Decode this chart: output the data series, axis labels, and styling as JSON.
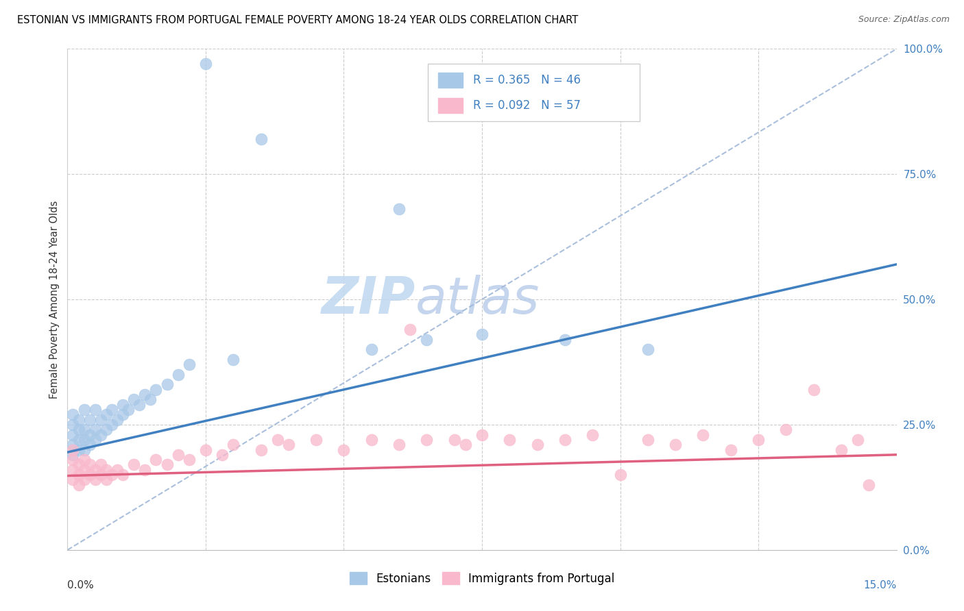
{
  "title": "ESTONIAN VS IMMIGRANTS FROM PORTUGAL FEMALE POVERTY AMONG 18-24 YEAR OLDS CORRELATION CHART",
  "source": "Source: ZipAtlas.com",
  "ylabel": "Female Poverty Among 18-24 Year Olds",
  "watermark_zip": "ZIP",
  "watermark_atlas": "atlas",
  "legend_blue_label": "Estonians",
  "legend_pink_label": "Immigrants from Portugal",
  "legend_blue_R": "R = 0.365",
  "legend_blue_N": "N = 46",
  "legend_pink_R": "R = 0.092",
  "legend_pink_N": "N = 57",
  "blue_fill_color": "#a8c8e8",
  "pink_fill_color": "#f9b8cc",
  "blue_line_color": "#4080c0",
  "pink_line_color": "#e06080",
  "diagonal_line_color": "#a0b8d8",
  "blue_regress_intercept": 0.195,
  "blue_regress_slope": 2.5,
  "pink_regress_intercept": 0.148,
  "pink_regress_slope": 0.28,
  "xlim": [
    0.0,
    0.15
  ],
  "ylim": [
    0.0,
    1.0
  ],
  "right_ytick_labels": [
    "0.0%",
    "25.0%",
    "50.0%",
    "75.0%",
    "100.0%"
  ],
  "right_ytick_values": [
    0.0,
    0.25,
    0.5,
    0.75,
    1.0
  ],
  "blue_scatter_x": [
    0.001,
    0.001,
    0.001,
    0.001,
    0.001,
    0.002,
    0.002,
    0.002,
    0.002,
    0.003,
    0.003,
    0.003,
    0.003,
    0.004,
    0.004,
    0.004,
    0.005,
    0.005,
    0.005,
    0.006,
    0.006,
    0.007,
    0.007,
    0.008,
    0.008,
    0.009,
    0.01,
    0.01,
    0.011,
    0.012,
    0.013,
    0.014,
    0.015,
    0.016,
    0.018,
    0.02,
    0.022,
    0.025,
    0.03,
    0.035,
    0.055,
    0.06,
    0.065,
    0.075,
    0.09,
    0.105
  ],
  "blue_scatter_y": [
    0.19,
    0.21,
    0.23,
    0.25,
    0.27,
    0.2,
    0.22,
    0.24,
    0.26,
    0.2,
    0.22,
    0.24,
    0.28,
    0.21,
    0.23,
    0.26,
    0.22,
    0.24,
    0.28,
    0.23,
    0.26,
    0.24,
    0.27,
    0.25,
    0.28,
    0.26,
    0.27,
    0.29,
    0.28,
    0.3,
    0.29,
    0.31,
    0.3,
    0.32,
    0.33,
    0.35,
    0.37,
    0.97,
    0.38,
    0.82,
    0.4,
    0.68,
    0.42,
    0.43,
    0.42,
    0.4
  ],
  "pink_scatter_x": [
    0.001,
    0.001,
    0.001,
    0.001,
    0.002,
    0.002,
    0.002,
    0.003,
    0.003,
    0.003,
    0.004,
    0.004,
    0.005,
    0.005,
    0.006,
    0.006,
    0.007,
    0.007,
    0.008,
    0.009,
    0.01,
    0.012,
    0.014,
    0.016,
    0.018,
    0.02,
    0.022,
    0.025,
    0.028,
    0.03,
    0.035,
    0.038,
    0.04,
    0.045,
    0.05,
    0.055,
    0.06,
    0.062,
    0.065,
    0.07,
    0.072,
    0.075,
    0.08,
    0.085,
    0.09,
    0.095,
    0.1,
    0.105,
    0.11,
    0.115,
    0.12,
    0.125,
    0.13,
    0.135,
    0.14,
    0.143,
    0.145
  ],
  "pink_scatter_y": [
    0.14,
    0.16,
    0.18,
    0.2,
    0.13,
    0.15,
    0.17,
    0.14,
    0.16,
    0.18,
    0.15,
    0.17,
    0.14,
    0.16,
    0.15,
    0.17,
    0.14,
    0.16,
    0.15,
    0.16,
    0.15,
    0.17,
    0.16,
    0.18,
    0.17,
    0.19,
    0.18,
    0.2,
    0.19,
    0.21,
    0.2,
    0.22,
    0.21,
    0.22,
    0.2,
    0.22,
    0.21,
    0.44,
    0.22,
    0.22,
    0.21,
    0.23,
    0.22,
    0.21,
    0.22,
    0.23,
    0.15,
    0.22,
    0.21,
    0.23,
    0.2,
    0.22,
    0.24,
    0.32,
    0.2,
    0.22,
    0.13
  ]
}
